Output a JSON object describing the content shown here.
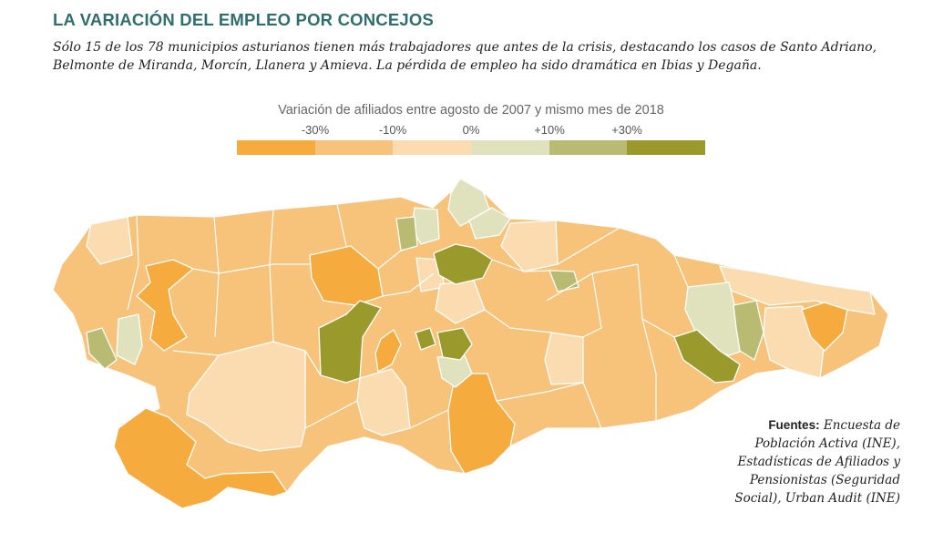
{
  "title": "LA VARIACIÓN DEL EMPLEO POR CONCEJOS",
  "subtitle": "Sólo 15 de los 78 municipios asturianos tienen más trabajadores que antes de la crisis, destacando los casos de Santo Adriano, Belmonte de Miranda, Morcín, Llanera y Amieva. La pérdida de empleo ha sido dramática en Ibias y Degaña.",
  "legend": {
    "title": "Variación de afiliados entre agosto de 2007 y mismo mes de 2018",
    "ticks": [
      "-30%",
      "-10%",
      "0%",
      "+10%",
      "+30%"
    ],
    "colors": [
      "#f6ab3f",
      "#f7c27a",
      "#fbdcb0",
      "#dfe2bc",
      "#b9bb72",
      "#9a9a2c"
    ]
  },
  "sources": {
    "label": "Fuentes:",
    "text": "Encuesta de Población Activa (INE), Estadísticas de Afiliados y Pensionistas (Seguridad Social), Urban Audit (INE)"
  }
}
